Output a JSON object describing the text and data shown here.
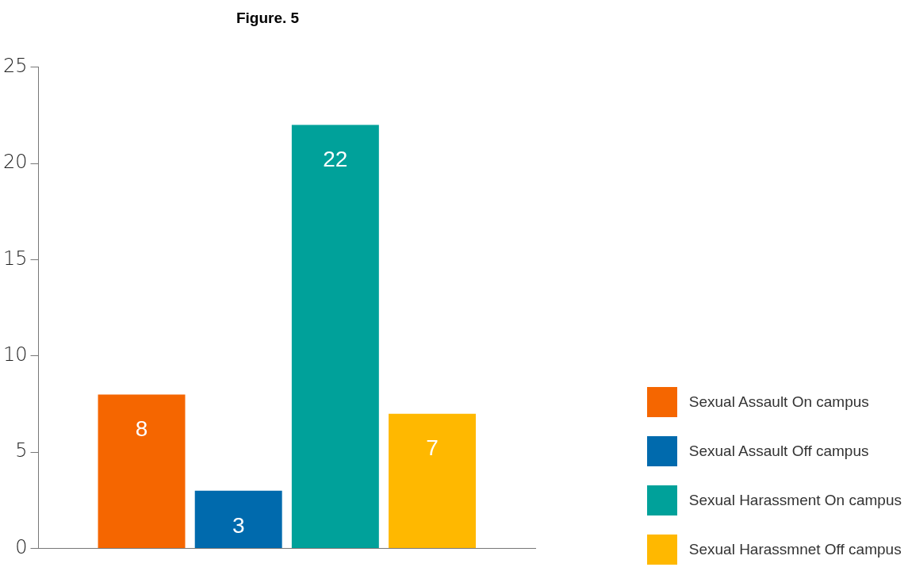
{
  "chart_data": {
    "type": "bar",
    "title": "Figure. 5",
    "categories": [
      null
    ],
    "series": [
      {
        "name": "Sexual Assault On campus",
        "color": "#f56600",
        "values": [
          8
        ]
      },
      {
        "name": "Sexual Assault Off campus",
        "color": "#006aad",
        "values": [
          3
        ]
      },
      {
        "name": "Sexual Harassment On campus",
        "color": "#00a19a",
        "values": [
          22
        ]
      },
      {
        "name": "Sexual Harassmnet Off campus",
        "color": "#ffb800",
        "values": [
          7
        ]
      }
    ],
    "ylim": [
      0,
      25
    ],
    "yticks": [
      0,
      5,
      10,
      15,
      20,
      25
    ],
    "grid": false,
    "legend": "bottom right",
    "data_labels": true
  }
}
